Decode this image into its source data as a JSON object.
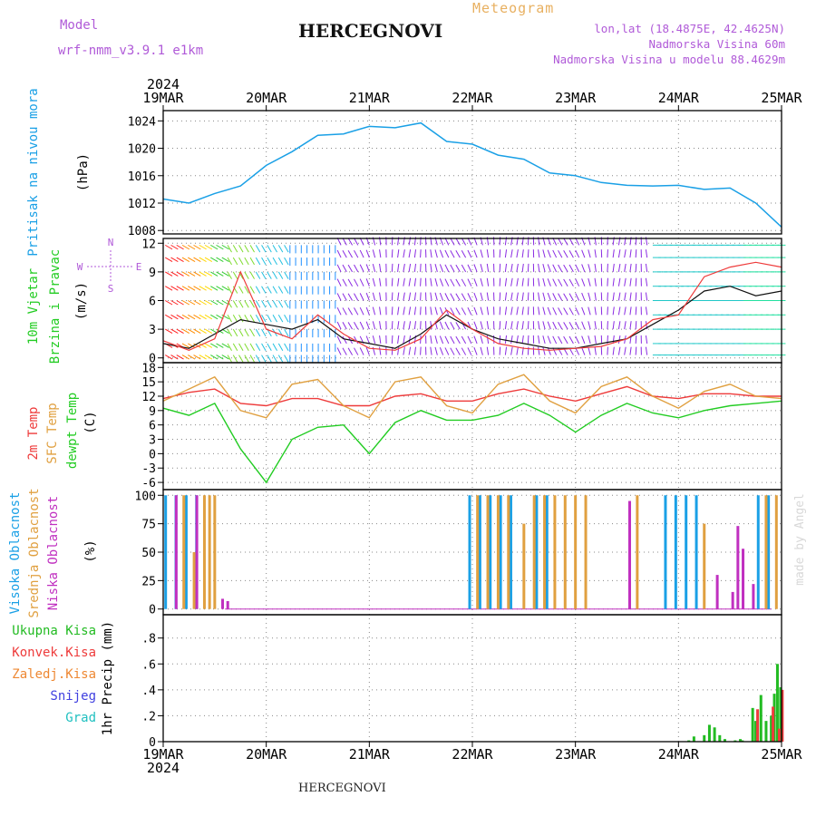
{
  "header": {
    "model_label": "Model",
    "model_name": "wrf-nmm_v3.9.1 e1km",
    "title": "HERCEGNOVI",
    "meteogram": "Meteogram",
    "lonlat": "lon,lat (18.4875E, 42.4625N)",
    "elevation": "Nadmorska Visina 60m",
    "model_elevation": "Nadmorska Visina u modelu 88.4629m",
    "footer_title": "HERCEGNOVI",
    "credit": "made by Angel"
  },
  "colors": {
    "pressure": "#1aa0e6",
    "temp2m": "#ee3b3b",
    "sfc_temp": "#e0a040",
    "dewpoint": "#22cc22",
    "cloud_high": "#1aa0e6",
    "cloud_mid": "#e0a040",
    "cloud_low": "#c030c0",
    "precip_total": "#22bb22",
    "precip_conv": "#ee3b3b",
    "precip_strat": "#ee8833",
    "snow": "#4040e0",
    "hail": "#20c0c0"
  },
  "chart_data": [
    {
      "type": "line",
      "panel": "pressure",
      "ylabel_lines": [
        "Pritisak na nivou mora",
        "(hPa)"
      ],
      "yticks": [
        1008,
        1012,
        1016,
        1020,
        1024
      ],
      "ylim": [
        1007.5,
        1025.5
      ],
      "x_day": [
        0,
        0.25,
        0.5,
        0.75,
        1.0,
        1.25,
        1.5,
        1.75,
        2.0,
        2.25,
        2.5,
        2.75,
        3.0,
        3.25,
        3.5,
        3.75,
        4.0,
        4.25,
        4.5,
        4.75,
        5.0,
        5.25,
        5.5,
        5.75,
        6.0
      ],
      "series": [
        {
          "values": [
            1012.6,
            1012.0,
            1013.4,
            1014.5,
            1017.5,
            1019.5,
            1021.9,
            1022.1,
            1023.2,
            1023.0,
            1023.7,
            1021.0,
            1020.6,
            1019.0,
            1018.4,
            1016.4,
            1016.0,
            1015.0,
            1014.6,
            1014.5,
            1014.6,
            1014.0,
            1014.2,
            1012.0,
            1008.5
          ]
        }
      ]
    },
    {
      "type": "line",
      "panel": "wind",
      "ylabel_lines": [
        "10m Vjetar",
        "Brzina i Pravac",
        "(m/s)"
      ],
      "compass": [
        "N",
        "E",
        "S",
        "W"
      ],
      "yticks": [
        0,
        3,
        6,
        9,
        12
      ],
      "ylim": [
        -0.5,
        12.5
      ],
      "x_day": [
        0,
        0.25,
        0.5,
        0.75,
        1.0,
        1.25,
        1.5,
        1.75,
        2.0,
        2.25,
        2.5,
        2.75,
        3.0,
        3.25,
        3.5,
        3.75,
        4.0,
        4.25,
        4.5,
        4.75,
        5.0,
        5.25,
        5.5,
        5.75,
        6.0
      ],
      "series": [
        {
          "values": [
            1.5,
            1.0,
            2.5,
            4.0,
            3.5,
            3.0,
            4.0,
            2.0,
            1.5,
            1.0,
            2.5,
            4.5,
            3.0,
            2.0,
            1.5,
            1.0,
            1.0,
            1.5,
            2.0,
            3.5,
            5.0,
            7.0,
            7.5,
            6.5,
            7.0
          ]
        },
        {
          "values": [
            1.8,
            0.8,
            2.0,
            9.0,
            3.0,
            2.0,
            4.5,
            2.5,
            1.0,
            0.8,
            2.0,
            5.0,
            3.0,
            1.5,
            1.0,
            0.8,
            1.0,
            1.2,
            2.0,
            4.0,
            4.5,
            8.5,
            9.5,
            10.0,
            9.5
          ]
        }
      ]
    },
    {
      "type": "line",
      "panel": "temperature",
      "ylabel_lines": [
        "2m Temp",
        "SFC Temp",
        "dewpt Temp",
        "(C)"
      ],
      "yticks": [
        -6,
        -3,
        0,
        3,
        6,
        9,
        12,
        15,
        18
      ],
      "ylim": [
        -7.5,
        19
      ],
      "x_day": [
        0,
        0.25,
        0.5,
        0.75,
        1.0,
        1.25,
        1.5,
        1.75,
        2.0,
        2.25,
        2.5,
        2.75,
        3.0,
        3.25,
        3.5,
        3.75,
        4.0,
        4.25,
        4.5,
        4.75,
        5.0,
        5.25,
        5.5,
        5.75,
        6.0
      ],
      "series": [
        {
          "name": "2m Temp",
          "values": [
            11.5,
            12.8,
            13.5,
            10.5,
            10.0,
            11.5,
            11.5,
            10.0,
            10.0,
            12.0,
            12.5,
            11.0,
            11.0,
            12.5,
            13.5,
            12.0,
            11.0,
            12.5,
            14.0,
            12.0,
            11.5,
            12.5,
            12.5,
            12.0,
            12.0
          ]
        },
        {
          "name": "SFC Temp",
          "values": [
            11.0,
            13.5,
            16.0,
            9.0,
            7.5,
            14.5,
            15.5,
            10.0,
            7.5,
            15.0,
            16.0,
            10.0,
            8.5,
            14.5,
            16.5,
            11.0,
            8.5,
            14.0,
            16.0,
            12.0,
            9.5,
            13.0,
            14.5,
            12.0,
            11.5
          ]
        },
        {
          "name": "dewpt Temp",
          "values": [
            9.5,
            8.0,
            10.5,
            1.0,
            -6.0,
            3.0,
            5.5,
            6.0,
            0.0,
            6.5,
            9.0,
            7.0,
            7.0,
            8.0,
            10.5,
            8.0,
            4.5,
            8.0,
            10.5,
            8.5,
            7.5,
            9.0,
            10.0,
            10.5,
            11.0
          ]
        }
      ]
    },
    {
      "type": "bar",
      "panel": "clouds",
      "ylabel_lines": [
        "Visoka Oblacnost",
        "Srednja Oblacnost",
        "Niska Oblacnost",
        "(%)"
      ],
      "yticks": [
        0,
        25,
        50,
        75,
        100
      ],
      "ylim": [
        -5,
        105
      ],
      "series": [
        {
          "name": "Visoka Oblacnost",
          "x_day": [
            0.05,
            0.15,
            0.25,
            0.35,
            3.0,
            3.1,
            3.2,
            3.3,
            3.4,
            3.65,
            3.75,
            4.9,
            5.0,
            5.1,
            5.2,
            5.8,
            5.9
          ],
          "values": [
            100,
            100,
            100,
            100,
            100,
            100,
            100,
            100,
            100,
            100,
            100,
            100,
            100,
            100,
            100,
            100,
            100
          ]
        },
        {
          "name": "Srednja Oblacnost",
          "x_day": [
            0.2,
            0.3,
            0.4,
            0.45,
            0.5,
            3.05,
            3.15,
            3.25,
            3.35,
            3.5,
            3.6,
            3.7,
            3.8,
            3.9,
            4.0,
            4.1,
            4.6,
            5.25,
            5.85,
            5.95
          ],
          "values": [
            100,
            50,
            100,
            100,
            100,
            100,
            100,
            100,
            100,
            75,
            100,
            100,
            100,
            100,
            100,
            100,
            100,
            75,
            100,
            100
          ]
        },
        {
          "name": "Niska Oblacnost",
          "x_day": [
            0.1,
            0.3,
            0.55,
            0.6,
            4.5,
            5.35,
            5.5,
            5.55,
            5.6,
            5.7
          ],
          "values": [
            100,
            100,
            9,
            7,
            95,
            30,
            15,
            73,
            53,
            22
          ]
        }
      ]
    },
    {
      "type": "bar",
      "panel": "precipitation",
      "ylabel": "1hr Precip (mm)",
      "legend": [
        "Ukupna Kisa",
        "Konvek.Kisa",
        "Zaledj.Kisa",
        "Snijeg",
        "Grad"
      ],
      "yticks": [
        0,
        0.2,
        0.4,
        0.6,
        0.8
      ],
      "ylim": [
        0,
        0.98
      ],
      "series": [
        {
          "name": "Ukupna Kisa",
          "x_day": [
            5.1,
            5.15,
            5.25,
            5.3,
            5.35,
            5.4,
            5.45,
            5.55,
            5.6,
            5.62,
            5.72,
            5.75,
            5.8,
            5.85,
            5.9,
            5.93,
            5.96,
            5.99
          ],
          "values": [
            0.01,
            0.04,
            0.05,
            0.13,
            0.11,
            0.05,
            0.02,
            0.01,
            0.02,
            0.01,
            0.26,
            0.16,
            0.36,
            0.16,
            0.2,
            0.37,
            0.6,
            0.42
          ]
        },
        {
          "name": "Konvek.Kisa",
          "x_day": [
            5.75,
            5.9,
            5.96,
            5.99
          ],
          "values": [
            0.25,
            0.27,
            0.1,
            0.4
          ]
        }
      ]
    }
  ],
  "xaxis": {
    "day_labels": [
      "19MAR",
      "20MAR",
      "21MAR",
      "22MAR",
      "23MAR",
      "24MAR",
      "25MAR"
    ],
    "year": "2024"
  }
}
